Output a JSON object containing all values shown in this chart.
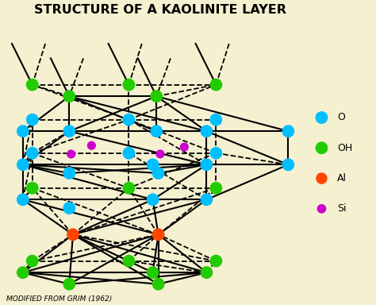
{
  "title": "STRUCTURE OF A KAOLINITE LAYER",
  "subtitle": "MODIFIED FROM GRIM (1962)",
  "bg_color": "#f5f0d0",
  "title_color": "#000000",
  "atom_colors": {
    "O": "#00bfff",
    "OH": "#22cc00",
    "Al": "#ff4500",
    "Si": "#cc00cc"
  },
  "legend_labels": [
    "O",
    "OH",
    "Al",
    "Si"
  ],
  "legend_colors": [
    "#00bfff",
    "#22cc00",
    "#ff4500",
    "#cc00cc"
  ],
  "legend_sizes": [
    130,
    130,
    110,
    70
  ]
}
